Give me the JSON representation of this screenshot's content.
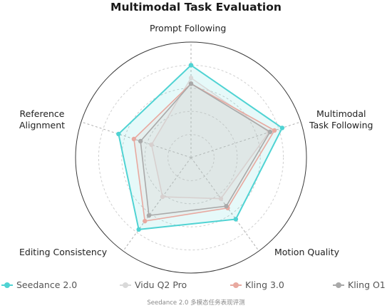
{
  "chart_data": {
    "type": "radar",
    "title": "Multimodal Task Evaluation",
    "axes": [
      "Prompt Following",
      "Multimodal Task Following",
      "Motion Quality",
      "Editing Consistency",
      "Reference Alignment"
    ],
    "range": [
      0,
      5
    ],
    "grid": true,
    "legend_position": "bottom",
    "series": [
      {
        "name": "Seedance 2.0",
        "color": "#4fd3d3",
        "values": [
          4.0,
          4.15,
          3.3,
          3.85,
          3.3
        ]
      },
      {
        "name": "Vidu Q2 Pro",
        "color": "#d9d9d9",
        "values": [
          3.45,
          3.55,
          2.2,
          2.1,
          1.8
        ]
      },
      {
        "name": "Kling 3.0",
        "color": "#e8a9a0",
        "values": [
          3.2,
          3.8,
          2.7,
          3.4,
          2.6
        ]
      },
      {
        "name": "Kling O1",
        "color": "#a9a9a9",
        "values": [
          3.2,
          3.6,
          2.6,
          3.1,
          2.3
        ]
      }
    ]
  },
  "caption": "Seedance 2.0 多模态任务表现评测"
}
